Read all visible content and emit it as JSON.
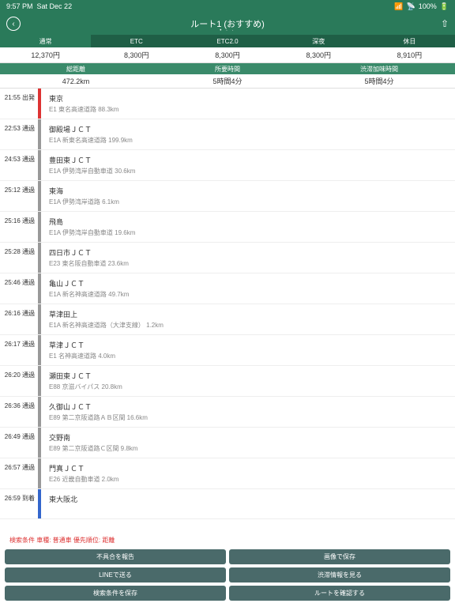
{
  "status": {
    "time": "9:57 PM",
    "date": "Sat Dec 22",
    "battery": "100%"
  },
  "header": {
    "title": "ルート1 (おすすめ)"
  },
  "tabs": [
    "通常",
    "ETC",
    "ETC2.0",
    "深夜",
    "休日"
  ],
  "prices": [
    "12,370円",
    "8,300円",
    "8,300円",
    "8,300円",
    "8,910円"
  ],
  "stats": {
    "headers": [
      "総距離",
      "所要時間",
      "渋滞加味時間"
    ],
    "values": [
      "472.2km",
      "5時間4分",
      "5時間4分"
    ]
  },
  "route": [
    {
      "time": "21:55 出発",
      "name": "東京",
      "detail": "E1 東名高速道路 88.3km",
      "line": "red"
    },
    {
      "time": "22:53 通過",
      "name": "御殿場ＪＣＴ",
      "detail": "E1A 新東名高速道路 199.9km",
      "line": "gray"
    },
    {
      "time": "24:53 通過",
      "name": "豊田東ＪＣＴ",
      "detail": "E1A 伊勢湾岸自動車道 30.6km",
      "line": "gray"
    },
    {
      "time": "25:12 通過",
      "name": "東海",
      "detail": "E1A 伊勢湾岸道路 6.1km",
      "line": "gray"
    },
    {
      "time": "25:16 通過",
      "name": "飛島",
      "detail": "E1A 伊勢湾岸自動車道 19.6km",
      "line": "gray"
    },
    {
      "time": "25:28 通過",
      "name": "四日市ＪＣＴ",
      "detail": "E23 東名阪自動車道 23.6km",
      "line": "gray"
    },
    {
      "time": "25:46 通過",
      "name": "亀山ＪＣＴ",
      "detail": "E1A 新名神高速道路 49.7km",
      "line": "gray"
    },
    {
      "time": "26:16 通過",
      "name": "草津田上",
      "detail": "E1A 新名神高速道路（大津支線） 1.2km",
      "line": "gray"
    },
    {
      "time": "26:17 通過",
      "name": "草津ＪＣＴ",
      "detail": "E1 名神高速道路 4.0km",
      "line": "gray"
    },
    {
      "time": "26:20 通過",
      "name": "瀬田東ＪＣＴ",
      "detail": "E88 京滋バイパス 20.8km",
      "line": "gray"
    },
    {
      "time": "26:36 通過",
      "name": "久御山ＪＣＴ",
      "detail": "E89 第二京阪道路ＡＢ区間 16.6km",
      "line": "gray"
    },
    {
      "time": "26:49 通過",
      "name": "交野南",
      "detail": "E89 第二京阪道路Ｃ区間 9.8km",
      "line": "gray"
    },
    {
      "time": "26:57 通過",
      "name": "門真ＪＣＴ",
      "detail": "E26 近畿自動車道 2.0km",
      "line": "gray"
    },
    {
      "time": "26:59 到着",
      "name": "東大阪北",
      "detail": "",
      "line": "blue"
    }
  ],
  "search_cond": "検索条件 車種: 普通車 優先順位: 距離",
  "buttons": [
    "不具合を報告",
    "画像で保存",
    "LINEで送る",
    "渋滞情報を見る",
    "検索条件を保存",
    "ルートを確認する"
  ]
}
